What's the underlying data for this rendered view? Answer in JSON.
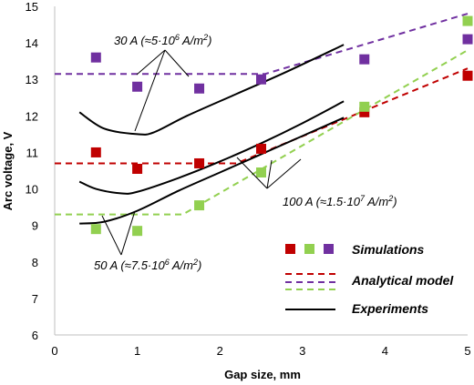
{
  "chart_data": {
    "type": "line",
    "xlabel": "Gap size, mm",
    "ylabel": "Arc voltage, V",
    "xlim": [
      0,
      5
    ],
    "ylim": [
      6,
      15
    ],
    "x_ticks": [
      0,
      1,
      2,
      3,
      4,
      5
    ],
    "y_ticks": [
      6,
      7,
      8,
      9,
      10,
      11,
      12,
      13,
      14,
      15
    ],
    "grid": false,
    "legend_position": "bottom-right",
    "legend": {
      "simulations": "Simulations",
      "analytical": "Analytical model",
      "experiments": "Experiments"
    },
    "colors": {
      "red": "#c00000",
      "green": "#92d050",
      "purple": "#7030a0",
      "black": "#000000"
    },
    "annotations": {
      "a30": "30 A (≈5·10",
      "a30_exp": "6",
      "a30_tail": " A/m",
      "a30_sq": "2",
      "a30_end": ")",
      "a100": "100 A (≈1.5·10",
      "a100_exp": "7",
      "a100_tail": " A/m",
      "a100_sq": "2",
      "a100_end": ")",
      "a50": "50 A (≈7.5·10",
      "a50_exp": "6",
      "a50_tail": " A/m",
      "a50_sq": "2",
      "a50_end": ")"
    },
    "series": [
      {
        "kind": "simulation",
        "color": "purple",
        "x": [
          0.5,
          1.0,
          1.75,
          2.5,
          3.75,
          5.0
        ],
        "y": [
          13.6,
          12.8,
          12.75,
          13.0,
          13.55,
          14.1
        ]
      },
      {
        "kind": "simulation",
        "color": "red",
        "x": [
          0.5,
          1.0,
          1.75,
          2.5,
          3.75,
          5.0
        ],
        "y": [
          11.0,
          10.55,
          10.7,
          11.1,
          12.1,
          13.1
        ]
      },
      {
        "kind": "simulation",
        "color": "green",
        "x": [
          0.5,
          1.0,
          1.75,
          2.5,
          3.75,
          5.0
        ],
        "y": [
          8.9,
          8.85,
          9.55,
          10.45,
          12.25,
          14.6
        ]
      },
      {
        "kind": "analytical",
        "color": "purple",
        "x": [
          0.0,
          2.55,
          5.0
        ],
        "y": [
          13.15,
          13.15,
          14.8
        ]
      },
      {
        "kind": "analytical",
        "color": "red",
        "x": [
          0.0,
          2.2,
          5.0
        ],
        "y": [
          10.7,
          10.7,
          13.3
        ]
      },
      {
        "kind": "analytical",
        "color": "green",
        "x": [
          0.0,
          1.55,
          5.0
        ],
        "y": [
          9.3,
          9.3,
          13.8
        ]
      },
      {
        "kind": "experiment",
        "color": "black",
        "x": [
          0.3,
          0.6,
          1.0,
          1.2,
          1.6,
          2.2,
          2.8,
          3.5
        ],
        "y": [
          12.1,
          11.65,
          11.5,
          11.55,
          12.0,
          12.6,
          13.2,
          13.95
        ]
      },
      {
        "kind": "experiment",
        "color": "black",
        "x": [
          0.3,
          0.5,
          0.8,
          1.0,
          1.5,
          2.0,
          2.5,
          3.0,
          3.5
        ],
        "y": [
          10.2,
          10.0,
          9.88,
          9.92,
          10.3,
          10.75,
          11.25,
          11.8,
          12.4
        ]
      },
      {
        "kind": "experiment",
        "color": "black",
        "x": [
          0.3,
          0.6,
          1.0,
          1.5,
          2.0,
          2.5,
          3.0,
          3.5
        ],
        "y": [
          9.05,
          9.1,
          9.4,
          9.95,
          10.45,
          10.95,
          11.45,
          11.95
        ]
      }
    ]
  }
}
